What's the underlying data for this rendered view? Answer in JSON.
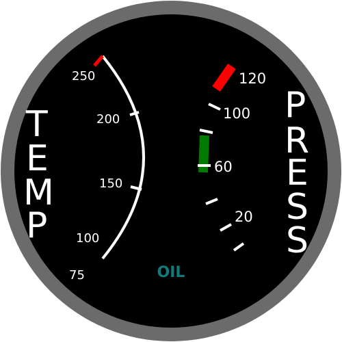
{
  "gauge": {
    "left_title": "TEMP",
    "right_title": "PRESS",
    "center_label": "OIL",
    "colors": {
      "bezel": "#6b6b6b",
      "face": "#000000",
      "markings": "#ffffff",
      "label_oil": "#117a7a",
      "danger": "#ff0000",
      "normal": "#007a00"
    },
    "temp_scale": {
      "labels": [
        "250",
        "200",
        "150",
        "100",
        "75"
      ]
    },
    "press_scale": {
      "labels": [
        "120",
        "100",
        "60",
        "20"
      ]
    }
  }
}
